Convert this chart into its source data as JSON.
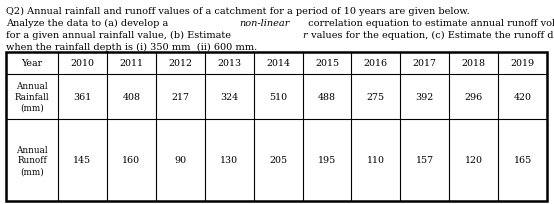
{
  "title_lines": [
    [
      "Q2) Annual rainfall and runoff values of a catchment for a period of 10 years are given below."
    ],
    [
      "Analyze the data to (a) develop a ",
      "non-linear",
      " correlation equation to estimate annual runoff volume"
    ],
    [
      "for a given annual rainfall value, (b) Estimate ",
      "r",
      " values for the equation, (c) Estimate the runoff depth"
    ],
    [
      "when the rainfall depth is (i) 350 mm  (ii) 600 mm."
    ]
  ],
  "title_italic": [
    [],
    [
      1
    ],
    [
      1
    ],
    []
  ],
  "years": [
    "Year",
    "2010",
    "2011",
    "2012",
    "2013",
    "2014",
    "2015",
    "2016",
    "2017",
    "2018",
    "2019"
  ],
  "rainfall_label": [
    "Annual",
    "Rainfall",
    "(mm)"
  ],
  "rainfall_values": [
    "361",
    "408",
    "217",
    "324",
    "510",
    "488",
    "275",
    "392",
    "296",
    "420"
  ],
  "runoff_label": [
    "Annual",
    "Runoff",
    "(mm)"
  ],
  "runoff_values": [
    "145",
    "160",
    "90",
    "130",
    "205",
    "195",
    "110",
    "157",
    "120",
    "165"
  ],
  "bg_color": "#ffffff",
  "text_color": "#000000",
  "border_color": "#000000",
  "font_size_text": 7.0,
  "font_size_table": 6.8,
  "font_size_label": 6.3
}
